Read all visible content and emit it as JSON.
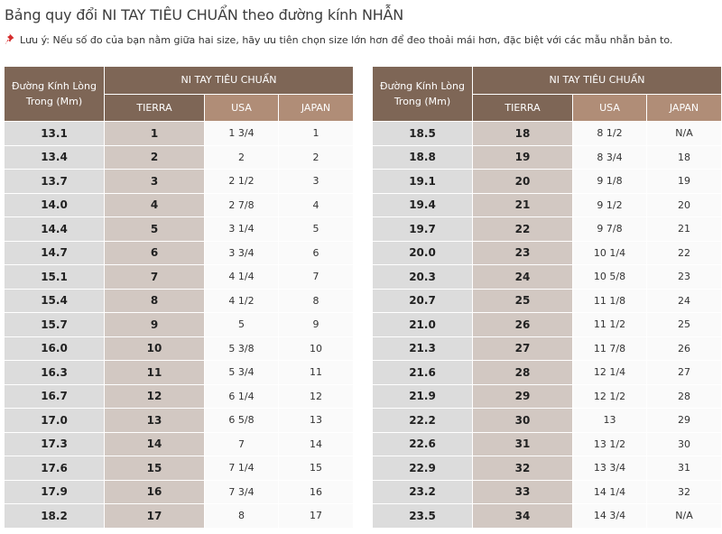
{
  "title": "Bảng quy đổi NI TAY TIÊU CHUẨN theo đường kính NHẪN",
  "note": "Lưu ý: Nếu số đo của bạn nằm giữa hai size, hãy ưu tiên chọn size lớn hơn để đeo thoải mái hơn, đặc biệt với các mẫu nhẫn bản to.",
  "note_icon": "pushpin-icon",
  "colors": {
    "header_dark": "#7e6656",
    "header_light": "#b08d77",
    "diam_cell": "#dcdcdc",
    "tierra_cell": "#d2c8c2"
  },
  "headers": {
    "diameter": "Đường Kính Lòng Trong (Mm)",
    "group": "NI TAY TIÊU CHUẨN",
    "tierra": "TIERRA",
    "usa": "USA",
    "japan": "JAPAN"
  },
  "left_rows": [
    [
      "13.1",
      "1",
      "1 3/4",
      "1"
    ],
    [
      "13.4",
      "2",
      "2",
      "2"
    ],
    [
      "13.7",
      "3",
      "2 1/2",
      "3"
    ],
    [
      "14.0",
      "4",
      "2 7/8",
      "4"
    ],
    [
      "14.4",
      "5",
      "3 1/4",
      "5"
    ],
    [
      "14.7",
      "6",
      "3 3/4",
      "6"
    ],
    [
      "15.1",
      "7",
      "4 1/4",
      "7"
    ],
    [
      "15.4",
      "8",
      "4 1/2",
      "8"
    ],
    [
      "15.7",
      "9",
      "5",
      "9"
    ],
    [
      "16.0",
      "10",
      "5 3/8",
      "10"
    ],
    [
      "16.3",
      "11",
      "5 3/4",
      "11"
    ],
    [
      "16.7",
      "12",
      "6 1/4",
      "12"
    ],
    [
      "17.0",
      "13",
      "6 5/8",
      "13"
    ],
    [
      "17.3",
      "14",
      "7",
      "14"
    ],
    [
      "17.6",
      "15",
      "7 1/4",
      "15"
    ],
    [
      "17.9",
      "16",
      "7 3/4",
      "16"
    ],
    [
      "18.2",
      "17",
      "8",
      "17"
    ]
  ],
  "right_rows": [
    [
      "18.5",
      "18",
      "8 1/2",
      "N/A"
    ],
    [
      "18.8",
      "19",
      "8 3/4",
      "18"
    ],
    [
      "19.1",
      "20",
      "9 1/8",
      "19"
    ],
    [
      "19.4",
      "21",
      "9 1/2",
      "20"
    ],
    [
      "19.7",
      "22",
      "9 7/8",
      "21"
    ],
    [
      "20.0",
      "23",
      "10 1/4",
      "22"
    ],
    [
      "20.3",
      "24",
      "10 5/8",
      "23"
    ],
    [
      "20.7",
      "25",
      "11 1/8",
      "24"
    ],
    [
      "21.0",
      "26",
      "11 1/2",
      "25"
    ],
    [
      "21.3",
      "27",
      "11 7/8",
      "26"
    ],
    [
      "21.6",
      "28",
      "12 1/4",
      "27"
    ],
    [
      "21.9",
      "29",
      "12 1/2",
      "28"
    ],
    [
      "22.2",
      "30",
      "13",
      "29"
    ],
    [
      "22.6",
      "31",
      "13 1/2",
      "30"
    ],
    [
      "22.9",
      "32",
      "13 3/4",
      "31"
    ],
    [
      "23.2",
      "33",
      "14 1/4",
      "32"
    ],
    [
      "23.5",
      "34",
      "14 3/4",
      "N/A"
    ]
  ]
}
